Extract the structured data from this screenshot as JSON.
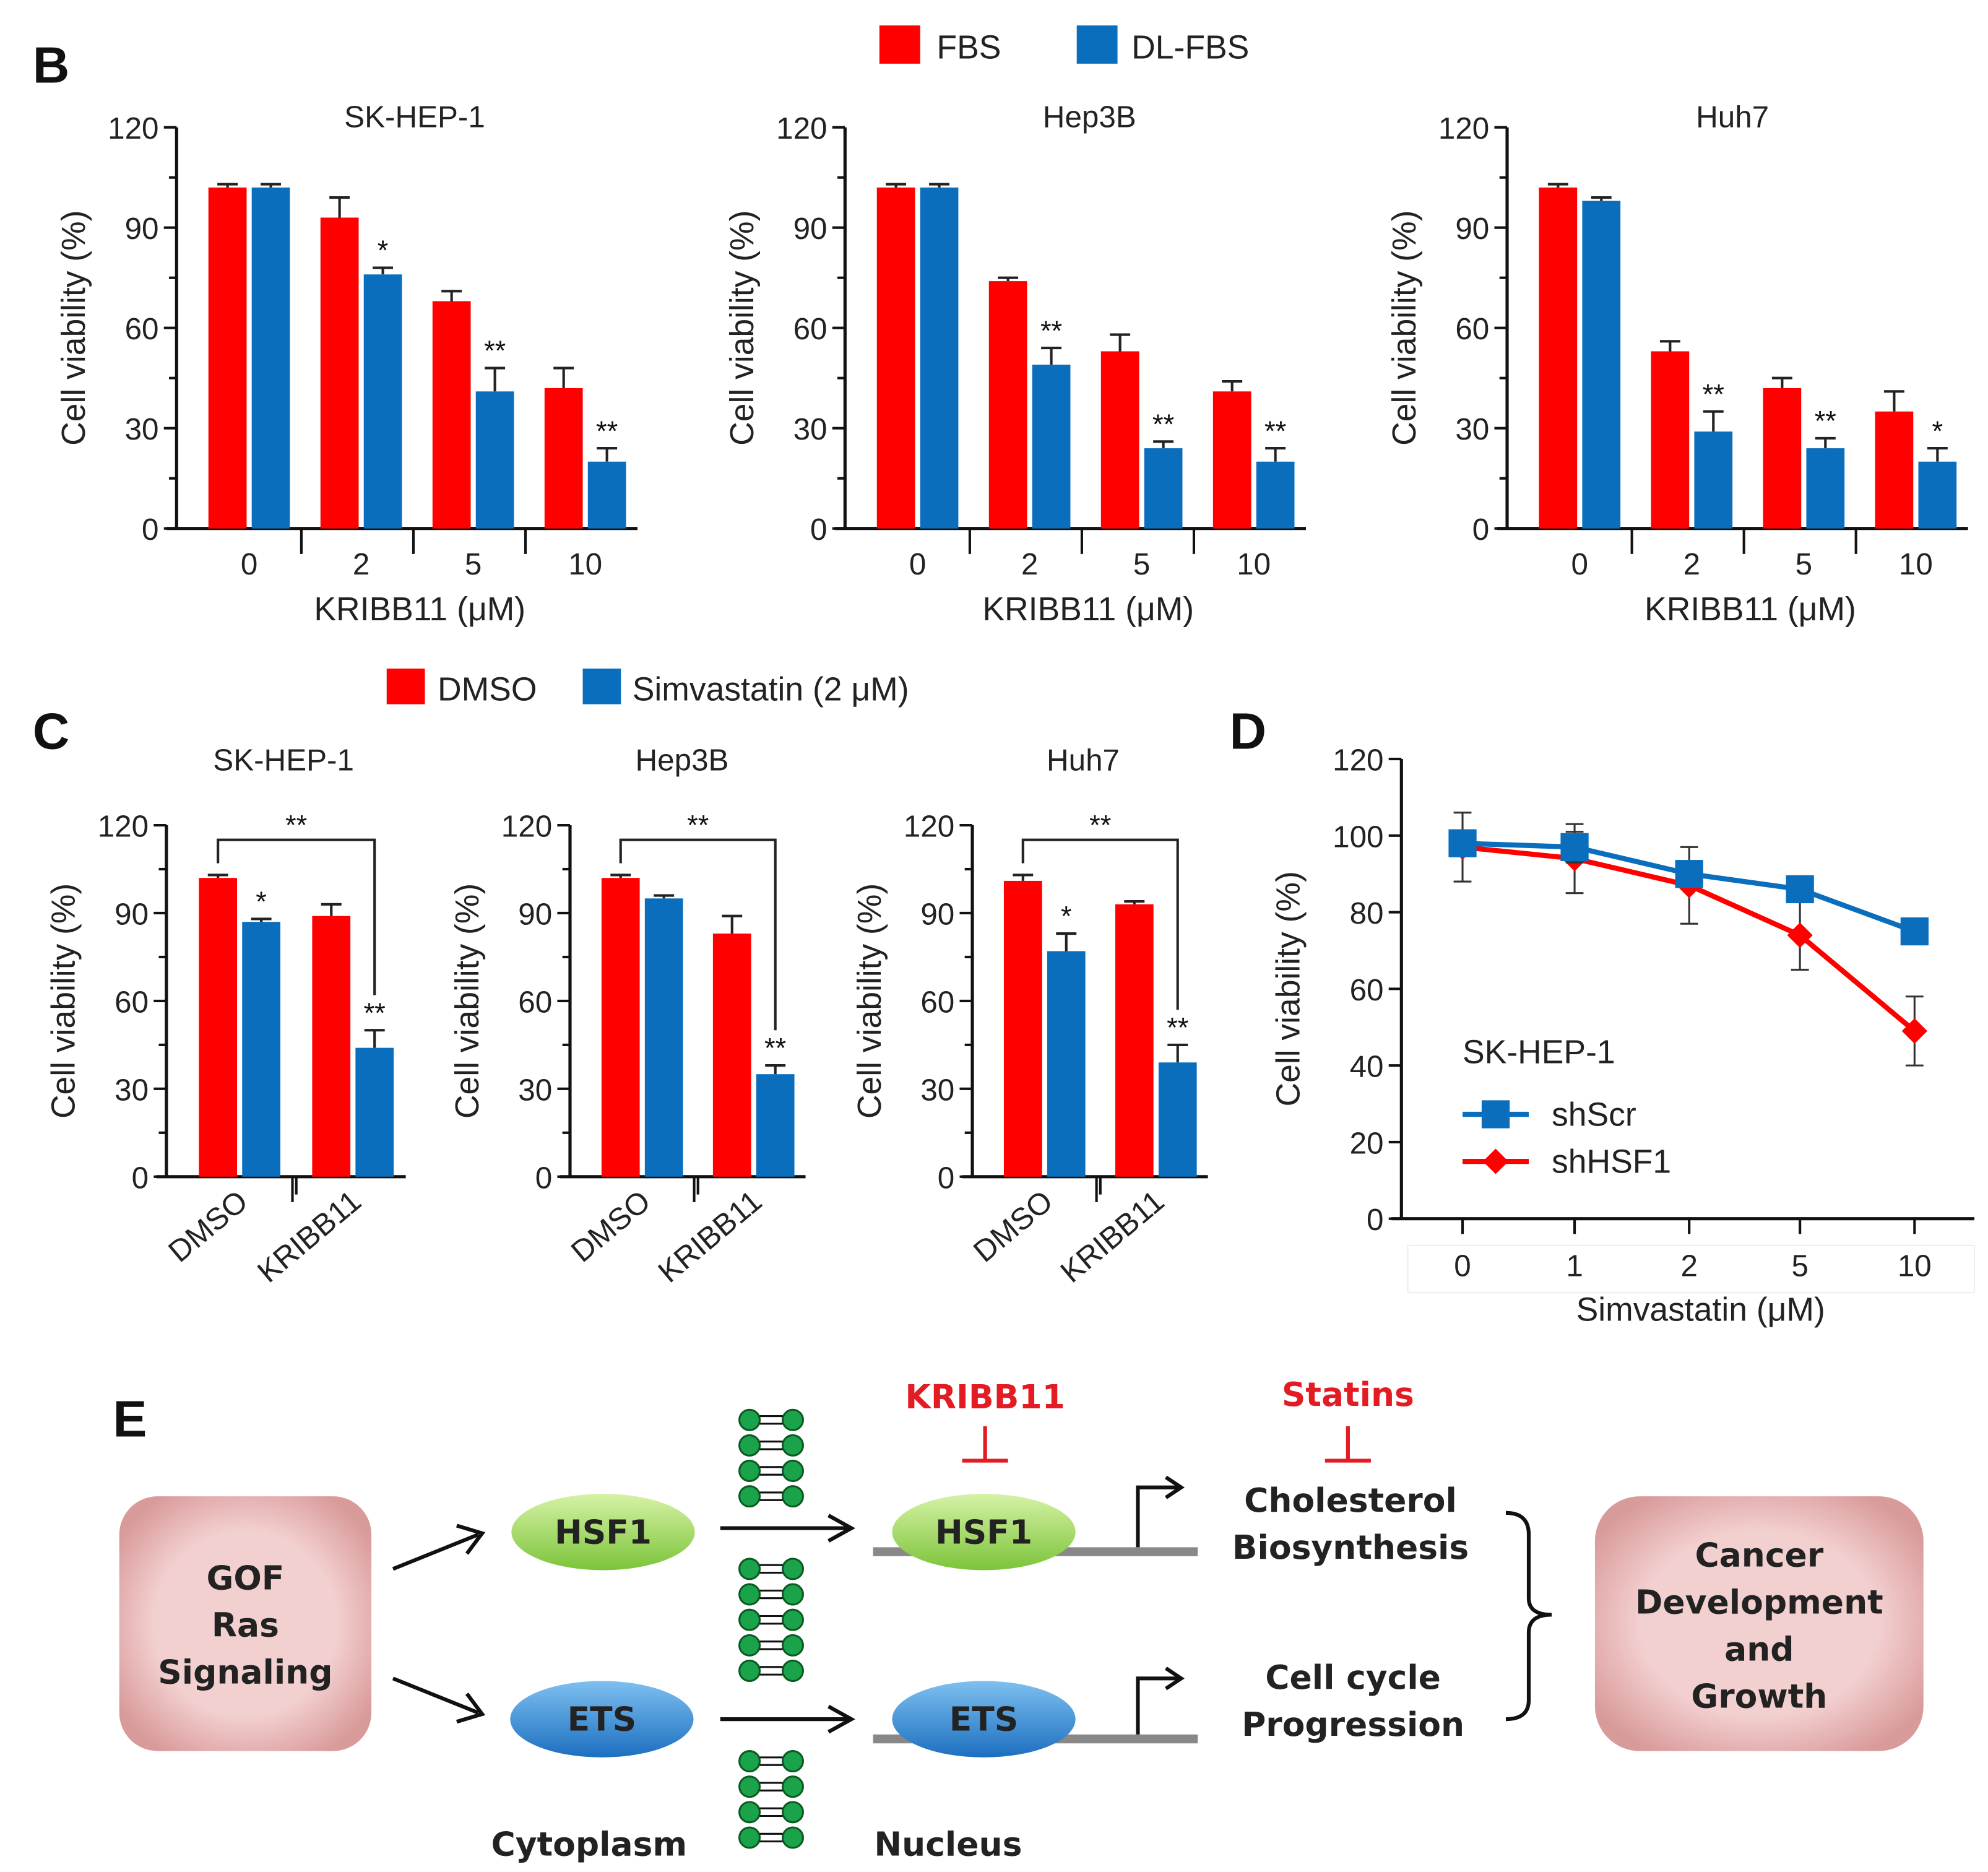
{
  "colors": {
    "red": "#fe0000",
    "blue": "#0a6ebd",
    "inhibitor": "#e31b23"
  },
  "panels": {
    "B": "B",
    "C": "C",
    "D": "D",
    "E": "E"
  },
  "legend_B": [
    "FBS",
    "DL-FBS"
  ],
  "legend_C": [
    "DMSO",
    "Simvastatin (2 μM)"
  ],
  "chart_data": [
    {
      "panel": "B",
      "type": "bar",
      "title": "SK-HEP-1",
      "xlabel": "KRIBB11 (μM)",
      "ylabel": "Cell viability (%)",
      "ylim": [
        0,
        120
      ],
      "yticks": [
        0,
        30,
        60,
        90,
        120
      ],
      "categories": [
        "0",
        "2",
        "5",
        "10"
      ],
      "series": [
        {
          "name": "FBS",
          "values": [
            102,
            93,
            68,
            42
          ],
          "errors": [
            1,
            6,
            3,
            6
          ]
        },
        {
          "name": "DL-FBS",
          "values": [
            102,
            76,
            41,
            20
          ],
          "errors": [
            1,
            2,
            7,
            4
          ]
        }
      ],
      "significance": [
        "",
        "*",
        "**",
        "**"
      ]
    },
    {
      "panel": "B",
      "type": "bar",
      "title": "Hep3B",
      "xlabel": "KRIBB11 (μM)",
      "ylabel": "Cell viability (%)",
      "ylim": [
        0,
        120
      ],
      "yticks": [
        0,
        30,
        60,
        90,
        120
      ],
      "categories": [
        "0",
        "2",
        "5",
        "10"
      ],
      "series": [
        {
          "name": "FBS",
          "values": [
            102,
            74,
            53,
            41
          ],
          "errors": [
            1,
            1,
            5,
            3
          ]
        },
        {
          "name": "DL-FBS",
          "values": [
            102,
            49,
            24,
            20
          ],
          "errors": [
            1,
            5,
            2,
            4
          ]
        }
      ],
      "significance": [
        "",
        "**",
        "**",
        "**"
      ]
    },
    {
      "panel": "B",
      "type": "bar",
      "title": "Huh7",
      "xlabel": "KRIBB11 (μM)",
      "ylabel": "Cell viability (%)",
      "ylim": [
        0,
        120
      ],
      "yticks": [
        0,
        30,
        60,
        90,
        120
      ],
      "categories": [
        "0",
        "2",
        "5",
        "10"
      ],
      "series": [
        {
          "name": "FBS",
          "values": [
            102,
            53,
            42,
            35
          ],
          "errors": [
            1,
            3,
            3,
            6
          ]
        },
        {
          "name": "DL-FBS",
          "values": [
            98,
            29,
            24,
            20
          ],
          "errors": [
            1,
            6,
            3,
            4
          ]
        }
      ],
      "significance": [
        "",
        "**",
        "**",
        "*"
      ]
    },
    {
      "panel": "C",
      "type": "bar",
      "title": "SK-HEP-1",
      "xlabel": "",
      "ylabel": "Cell viability (%)",
      "ylim": [
        0,
        120
      ],
      "yticks": [
        0,
        30,
        60,
        90,
        120
      ],
      "categories": [
        "DMSO",
        "KRIBB11"
      ],
      "series": [
        {
          "name": "DMSO",
          "values": [
            102,
            89
          ],
          "errors": [
            1,
            4
          ]
        },
        {
          "name": "Simvastatin (2 μM)",
          "values": [
            87,
            44
          ],
          "errors": [
            1,
            6
          ]
        }
      ],
      "significance": [
        "*",
        "**"
      ],
      "bracket": "**"
    },
    {
      "panel": "C",
      "type": "bar",
      "title": "Hep3B",
      "xlabel": "",
      "ylabel": "Cell viability (%)",
      "ylim": [
        0,
        120
      ],
      "yticks": [
        0,
        30,
        60,
        90,
        120
      ],
      "categories": [
        "DMSO",
        "KRIBB11"
      ],
      "series": [
        {
          "name": "DMSO",
          "values": [
            102,
            83
          ],
          "errors": [
            1,
            6
          ]
        },
        {
          "name": "Simvastatin (2 μM)",
          "values": [
            95,
            35
          ],
          "errors": [
            1,
            3
          ]
        }
      ],
      "significance": [
        "",
        "**"
      ],
      "bracket": "**"
    },
    {
      "panel": "C",
      "type": "bar",
      "title": "Huh7",
      "xlabel": "",
      "ylabel": "Cell viability (%)",
      "ylim": [
        0,
        120
      ],
      "yticks": [
        0,
        30,
        60,
        90,
        120
      ],
      "categories": [
        "DMSO",
        "KRIBB11"
      ],
      "series": [
        {
          "name": "DMSO",
          "values": [
            101,
            93
          ],
          "errors": [
            2,
            1
          ]
        },
        {
          "name": "Simvastatin (2 μM)",
          "values": [
            77,
            39
          ],
          "errors": [
            6,
            6
          ]
        }
      ],
      "significance": [
        "*",
        "**"
      ],
      "bracket": "**"
    },
    {
      "panel": "D",
      "type": "line",
      "title": "SK-HEP-1",
      "xlabel": "Simvastatin (μM)",
      "ylabel": "Cell viability (%)",
      "ylim": [
        0,
        120
      ],
      "yticks": [
        0,
        20,
        40,
        60,
        80,
        100,
        120
      ],
      "categories": [
        "0",
        "1",
        "2",
        "5",
        "10"
      ],
      "series": [
        {
          "name": "shScr",
          "marker": "square",
          "values": [
            98,
            97,
            90,
            86,
            75
          ],
          "errors": [
            3,
            4,
            3,
            3,
            3
          ]
        },
        {
          "name": "shHSF1",
          "marker": "diamond",
          "values": [
            97,
            94,
            87,
            74,
            49
          ],
          "errors": [
            9,
            9,
            10,
            9,
            9
          ]
        }
      ],
      "legend": "center-left"
    }
  ],
  "diagram": {
    "ras": [
      "GOF",
      "Ras",
      "Signaling"
    ],
    "hsf1": "HSF1",
    "ets": "ETS",
    "kribb11": "KRIBB11",
    "statins": "Statins",
    "chol": [
      "Cholesterol",
      "Biosynthesis"
    ],
    "cycle": [
      "Cell cycle",
      "Progression"
    ],
    "cancer": [
      "Cancer",
      "Development",
      "and",
      "Growth"
    ],
    "cytoplasm": "Cytoplasm",
    "nucleus": "Nucleus"
  }
}
